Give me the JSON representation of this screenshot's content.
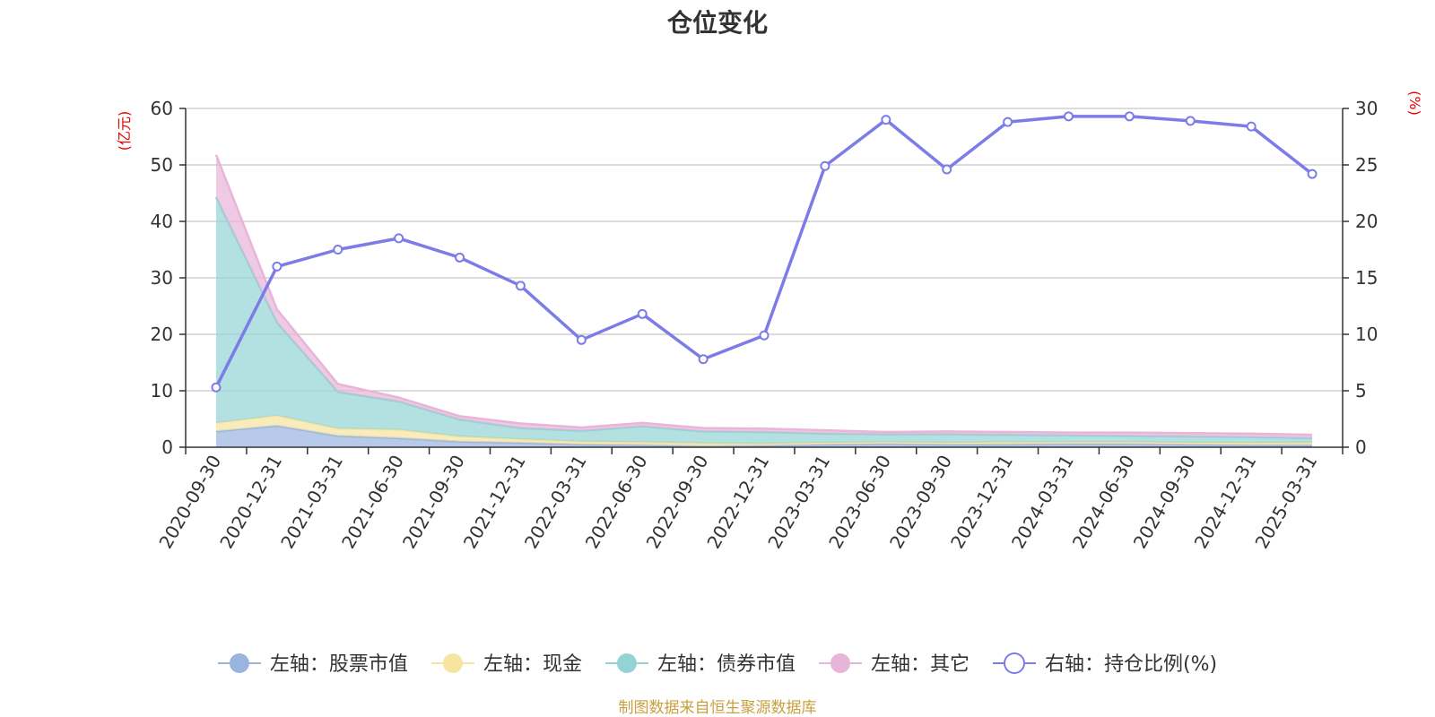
{
  "chart_data": {
    "type": "area",
    "title": "仓位变化",
    "left_axis_unit": "(亿元)",
    "right_axis_unit": "(%)",
    "left_ylim": [
      0,
      60
    ],
    "left_yticks": [
      0,
      10,
      20,
      30,
      40,
      50,
      60
    ],
    "right_ylim": [
      0,
      30
    ],
    "right_yticks": [
      0,
      5,
      10,
      15,
      20,
      25,
      30
    ],
    "categories": [
      "2020-09-30",
      "2020-12-31",
      "2021-03-31",
      "2021-06-30",
      "2021-09-30",
      "2021-12-31",
      "2022-03-31",
      "2022-06-30",
      "2022-09-30",
      "2022-12-31",
      "2023-03-31",
      "2023-06-30",
      "2023-09-30",
      "2023-12-31",
      "2024-03-31",
      "2024-06-30",
      "2024-09-30",
      "2024-12-31",
      "2025-03-31"
    ],
    "stacked_series": [
      {
        "name": "左轴：股票市值",
        "axis": "left",
        "color": "#9ab4e0",
        "values": [
          2.8,
          3.8,
          2.0,
          1.6,
          1.0,
          0.8,
          0.5,
          0.4,
          0.2,
          0.3,
          0.5,
          0.6,
          0.5,
          0.5,
          0.6,
          0.6,
          0.5,
          0.4,
          0.4
        ]
      },
      {
        "name": "左轴：现金",
        "axis": "left",
        "color": "#f7e4a0",
        "values": [
          1.5,
          1.8,
          1.3,
          1.5,
          0.9,
          0.6,
          0.5,
          0.5,
          0.5,
          0.3,
          0.3,
          0.3,
          0.3,
          0.4,
          0.3,
          0.3,
          0.3,
          0.4,
          0.4
        ]
      },
      {
        "name": "左轴：债券市值",
        "axis": "left",
        "color": "#93d3d4",
        "values": [
          40.0,
          16.5,
          6.5,
          5.0,
          3.0,
          2.0,
          1.9,
          2.8,
          2.1,
          2.1,
          1.6,
          1.4,
          1.5,
          1.3,
          1.2,
          1.1,
          1.1,
          1.0,
          0.8
        ]
      },
      {
        "name": "左轴：其它",
        "axis": "left",
        "color": "#e8b4d8",
        "values": [
          7.5,
          2.3,
          1.4,
          0.7,
          0.6,
          0.8,
          0.6,
          0.6,
          0.6,
          0.6,
          0.6,
          0.4,
          0.5,
          0.5,
          0.5,
          0.6,
          0.6,
          0.6,
          0.6
        ]
      }
    ],
    "line_series": {
      "name": "右轴：持仓比例(%)",
      "axis": "right",
      "color": "#7c7ce8",
      "values": [
        5.3,
        16.0,
        17.5,
        18.5,
        16.8,
        14.3,
        9.5,
        11.8,
        7.8,
        9.9,
        24.9,
        29.0,
        24.6,
        28.8,
        29.3,
        29.3,
        28.9,
        28.4,
        24.2
      ]
    },
    "grid": true,
    "legend_position": "bottom"
  },
  "legend": {
    "items": [
      {
        "label": "左轴：股票市值",
        "color": "#9ab4e0",
        "type": "area"
      },
      {
        "label": "左轴：现金",
        "color": "#f7e4a0",
        "type": "area"
      },
      {
        "label": "左轴：债券市值",
        "color": "#93d3d4",
        "type": "area"
      },
      {
        "label": "左轴：其它",
        "color": "#e8b4d8",
        "type": "area"
      },
      {
        "label": "右轴：持仓比例(%)",
        "color": "#7c7ce8",
        "type": "line"
      }
    ]
  },
  "source_note": "制图数据来自恒生聚源数据库"
}
